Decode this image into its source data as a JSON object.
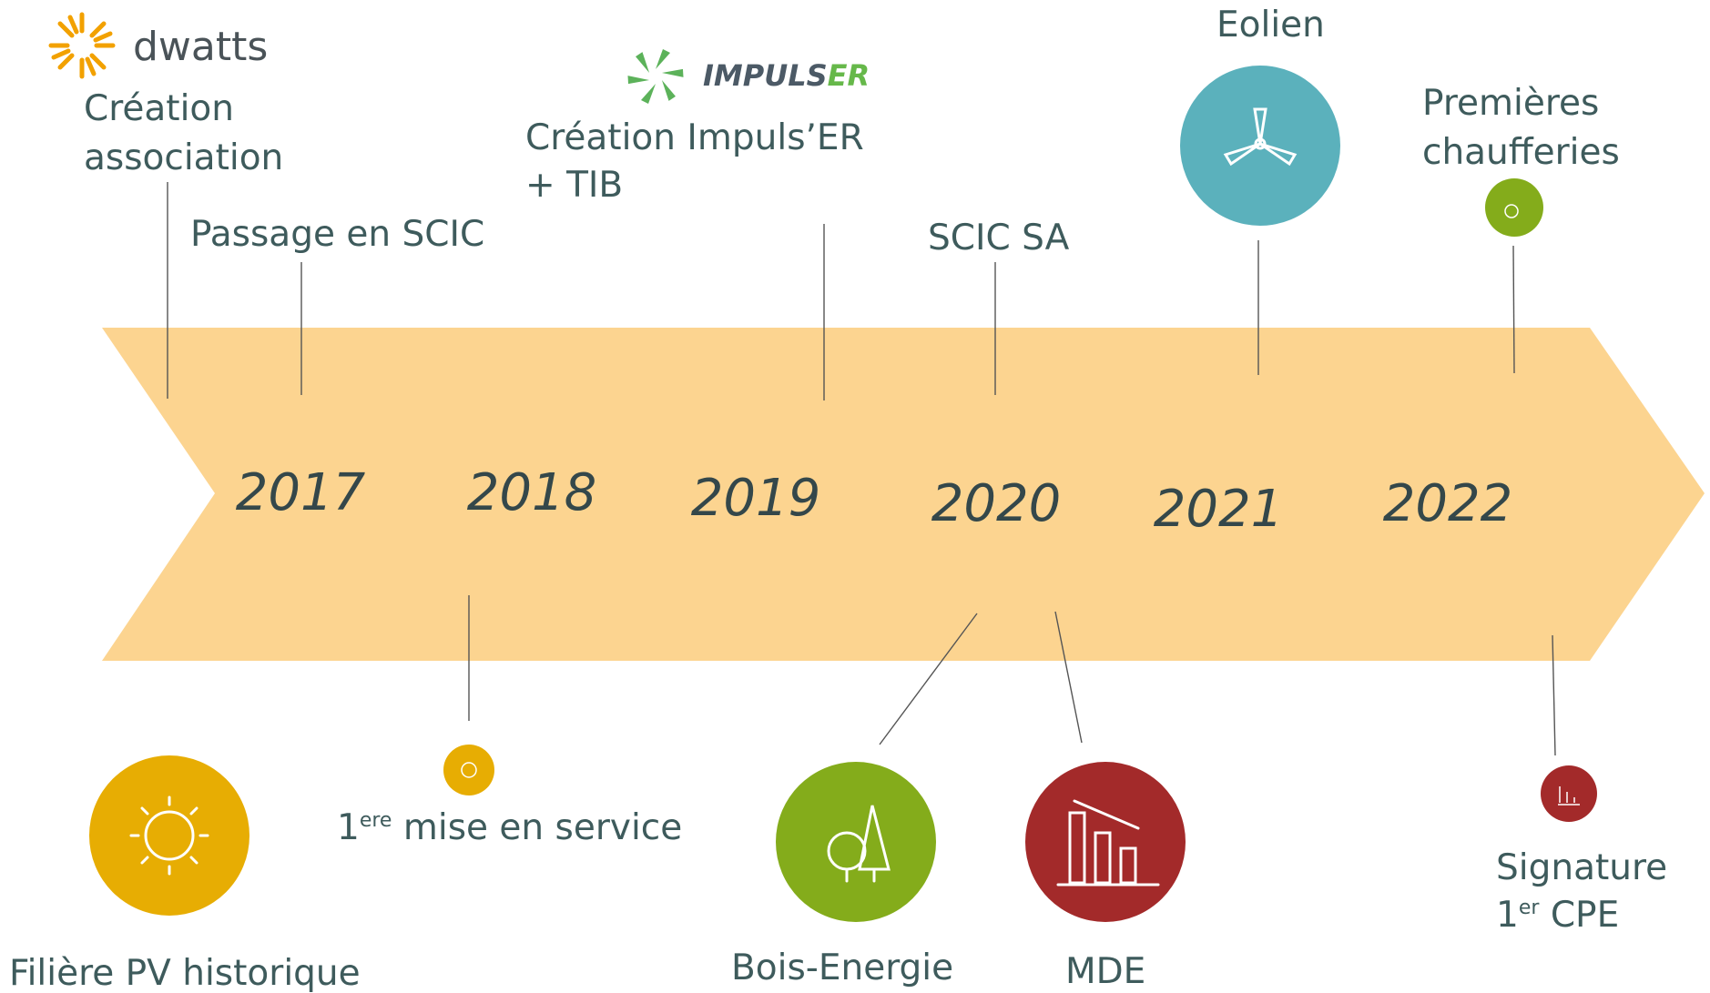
{
  "logos": {
    "dwatts": "dwatts",
    "impulser": {
      "main": "IMPULS",
      "accent": "ER"
    }
  },
  "years": [
    "2017",
    "2018",
    "2019",
    "2020",
    "2021",
    "2022"
  ],
  "events_above": [
    {
      "lines": [
        "Création",
        "association"
      ]
    },
    {
      "lines": [
        "Passage en SCIC"
      ]
    },
    {
      "lines": [
        "Création Impuls’ER",
        "+ TIB"
      ]
    },
    {
      "lines": [
        "SCIC SA"
      ]
    },
    {
      "lines": [
        "Eolien"
      ]
    },
    {
      "lines": [
        "Premières",
        "chaufferies"
      ]
    }
  ],
  "events_below": [
    {
      "label": "Filière PV historique"
    },
    {
      "label": {
        "base": "1",
        "sup": "ere",
        "rest": " mise en service"
      }
    },
    {
      "label": "Bois-Energie"
    },
    {
      "label": "MDE"
    },
    {
      "label": {
        "line1": "Signature",
        "base": "1",
        "sup": "er",
        "rest": " CPE"
      }
    }
  ]
}
